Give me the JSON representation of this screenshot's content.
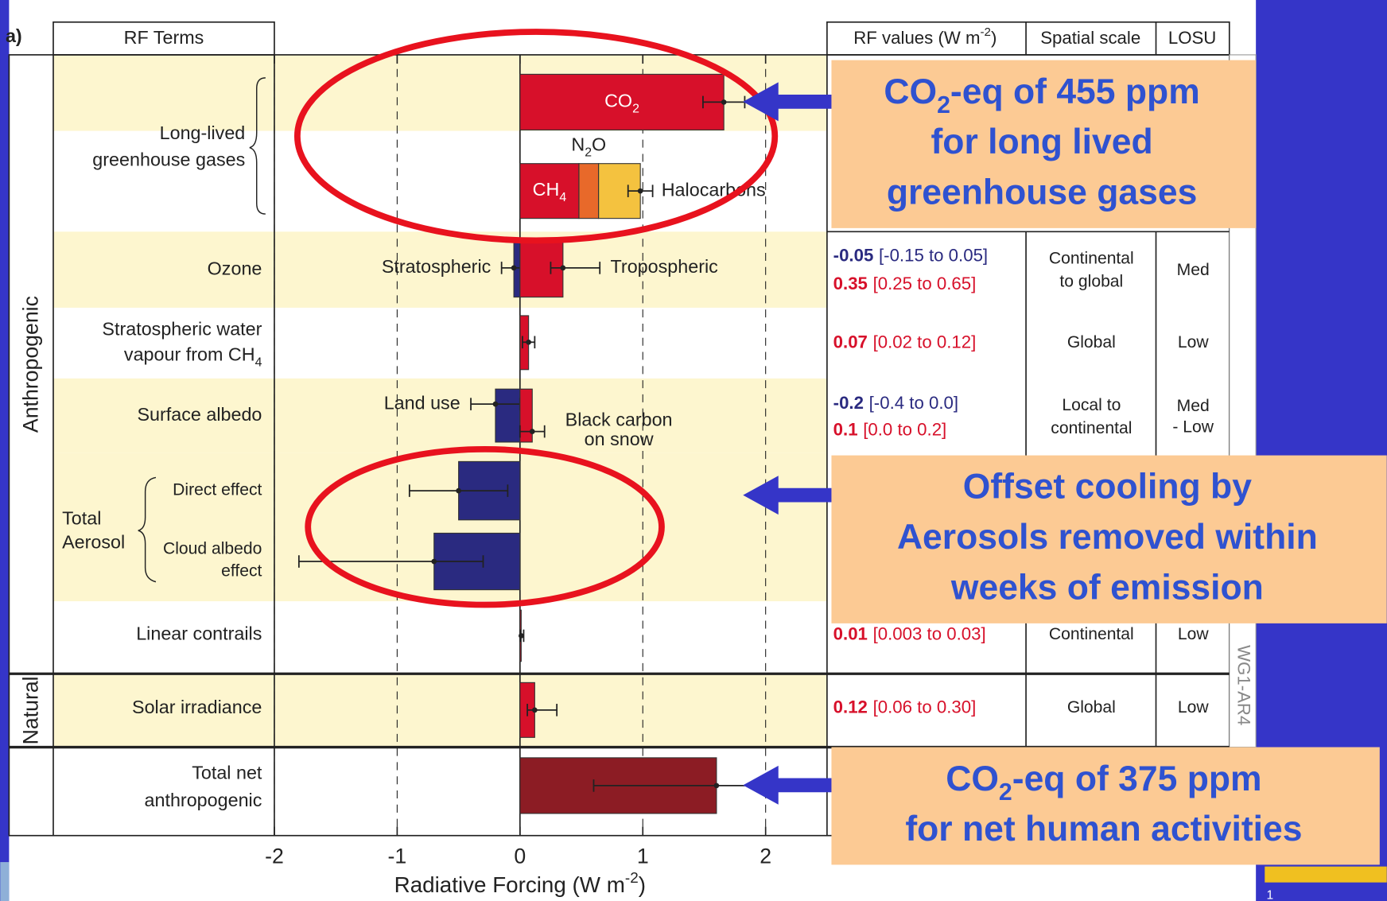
{
  "header": {
    "panel": "a)"
  },
  "footer": {
    "page": "1"
  },
  "chart_data": {
    "type": "bar",
    "orientation": "horizontal",
    "xlabel": {
      "text": "Radiative Forcing  (W m",
      "sup": "-2",
      "end": ")"
    },
    "xlim": [
      -2,
      2.5
    ],
    "xticks": [
      -2,
      -1,
      0,
      1,
      2
    ],
    "grid": "dashed",
    "column_headers": {
      "terms": "RF Terms",
      "values": {
        "text": "RF values (W m",
        "sup": "-2",
        "end": ")"
      },
      "scale": "Spatial scale",
      "losu": "LOSU"
    },
    "groups": [
      "Anthropogenic",
      "Natural"
    ],
    "watermark": "WG1-AR4",
    "rows": [
      {
        "label": [
          "Long-lived",
          "greenhouse gases"
        ],
        "bars": [
          {
            "name": {
              "text": "CO",
              "sub": "2"
            },
            "value": 1.66,
            "low": 1.49,
            "high": 1.83,
            "color": "#d7102a"
          }
        ],
        "stack": {
          "segments": [
            {
              "name": {
                "text": "CH",
                "sub": "4"
              },
              "value": 0.48,
              "color": "#d7102a"
            },
            {
              "name": {
                "text": "N",
                "sub": "2",
                "end": "O"
              },
              "value": 0.16,
              "color": "#e8692a"
            },
            {
              "name": "Halocarbons",
              "value": 0.34,
              "color": "#f4c23f"
            }
          ],
          "low": 0.88,
          "high": 1.08
        }
      },
      {
        "label": "Ozone",
        "bars": [
          {
            "name": "Stratospheric",
            "value": -0.05,
            "low": -0.15,
            "high": 0.05,
            "color": "#2a2a80",
            "range": "[-0.15 to 0.05]"
          },
          {
            "name": "Tropospheric",
            "value": 0.35,
            "low": 0.25,
            "high": 0.65,
            "color": "#d7102a",
            "range": "[0.25 to 0.65]"
          }
        ],
        "scale": [
          "Continental",
          "to global"
        ],
        "losu": "Med"
      },
      {
        "label": [
          "Stratospheric water",
          {
            "text": "vapour from CH",
            "sub": "4"
          }
        ],
        "bars": [
          {
            "value": 0.07,
            "low": 0.02,
            "high": 0.12,
            "color": "#d7102a",
            "range": "[0.02 to 0.12]"
          }
        ],
        "scale": "Global",
        "losu": "Low"
      },
      {
        "label": "Surface albedo",
        "bars": [
          {
            "name": "Land use",
            "value": -0.2,
            "low": -0.4,
            "high": 0.0,
            "color": "#2a2a80",
            "range": "[-0.4 to 0.0]"
          },
          {
            "name": [
              "Black carbon",
              "on snow"
            ],
            "value": 0.1,
            "low": 0.0,
            "high": 0.2,
            "color": "#d7102a",
            "range": "[0.0 to 0.2]"
          }
        ],
        "scale": [
          "Local to",
          "continental"
        ],
        "losu": [
          "Med",
          "- Low"
        ]
      },
      {
        "label": [
          "Total",
          "Aerosol"
        ],
        "bars": [
          {
            "term": "Direct effect",
            "value": -0.5,
            "low": -0.9,
            "high": -0.1,
            "color": "#2a2a80"
          },
          {
            "term": [
              "Cloud albedo",
              "effect"
            ],
            "value": -0.7,
            "low": -1.8,
            "high": -0.3,
            "color": "#2a2a80"
          }
        ]
      },
      {
        "label": "Linear contrails",
        "bars": [
          {
            "value": 0.01,
            "low": 0.003,
            "high": 0.03,
            "color": "#d7102a",
            "range": "[0.003 to 0.03]"
          }
        ],
        "scale": "Continental",
        "losu": "Low"
      },
      {
        "label": "Solar irradiance",
        "bars": [
          {
            "value": 0.12,
            "low": 0.06,
            "high": 0.3,
            "color": "#d7102a",
            "range": "[0.06 to 0.30]"
          }
        ],
        "scale": "Global",
        "losu": "Low"
      },
      {
        "label": [
          "Total net",
          "anthropogenic"
        ],
        "bars": [
          {
            "value": 1.6,
            "low": 0.6,
            "high": 2.4,
            "color": "#8c1c24"
          }
        ]
      }
    ]
  },
  "callouts": [
    {
      "lines": [
        {
          "text": "CO",
          "sub": "2",
          "end": "-eq of 455 ppm"
        },
        "for long lived",
        "greenhouse gases"
      ]
    },
    {
      "lines": [
        "Offset cooling by",
        "Aerosols removed within",
        "weeks of emission"
      ]
    },
    {
      "lines": [
        {
          "text": "CO",
          "sub": "2",
          "end": "-eq of 375 ppm"
        },
        "for net human activities"
      ]
    }
  ]
}
